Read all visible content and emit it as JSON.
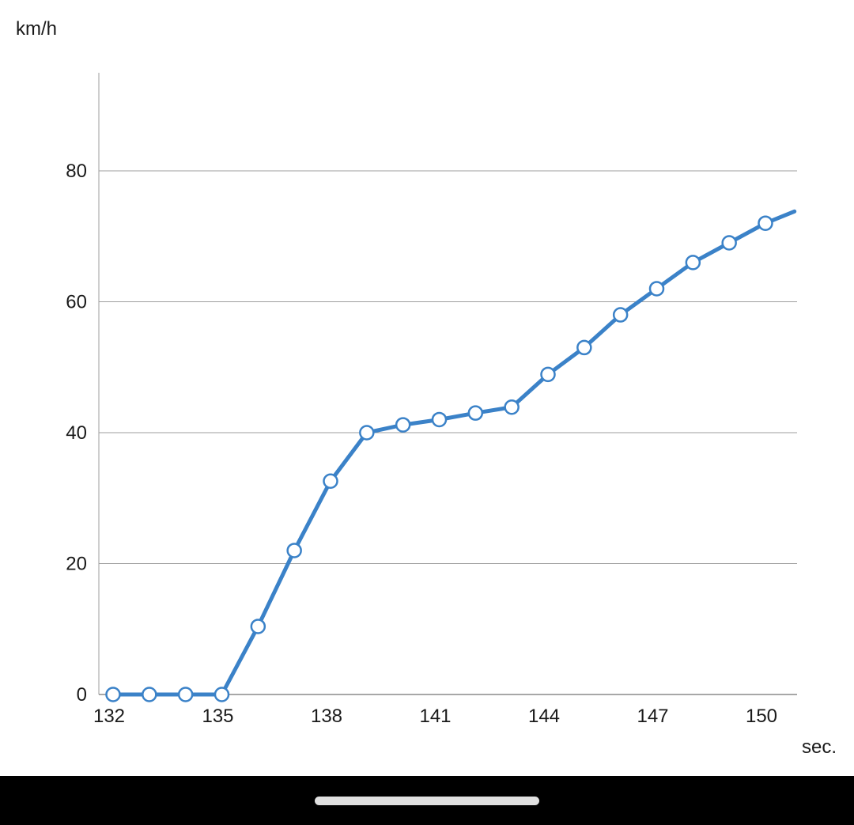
{
  "chart_data": {
    "type": "line",
    "ylabel": "km/h",
    "xlabel": "sec.",
    "xlim": [
      131.6,
      150.8
    ],
    "ylim": [
      0,
      95
    ],
    "x_ticks": [
      132,
      135,
      138,
      141,
      144,
      147,
      150
    ],
    "y_ticks": [
      0,
      20,
      40,
      60,
      80
    ],
    "grid": true,
    "legend": "none",
    "series": [
      {
        "color": "#3b82c8",
        "marker_fill": "#ffffff",
        "x": [
          132,
          133,
          134,
          135,
          136,
          137,
          138,
          139,
          140,
          141,
          142,
          143,
          144,
          145,
          146,
          147,
          148,
          149,
          150,
          150.8
        ],
        "y": [
          0,
          0,
          0,
          0,
          10.4,
          22,
          32.6,
          40,
          41.2,
          42,
          43,
          43.9,
          48.9,
          53,
          58,
          62,
          66,
          69,
          72,
          73.8
        ],
        "markers": [
          true,
          true,
          true,
          true,
          true,
          true,
          true,
          true,
          true,
          true,
          true,
          true,
          true,
          true,
          true,
          true,
          true,
          true,
          true,
          false
        ]
      }
    ]
  },
  "system_nav": {
    "home_indicator": "home-indicator-bar"
  }
}
